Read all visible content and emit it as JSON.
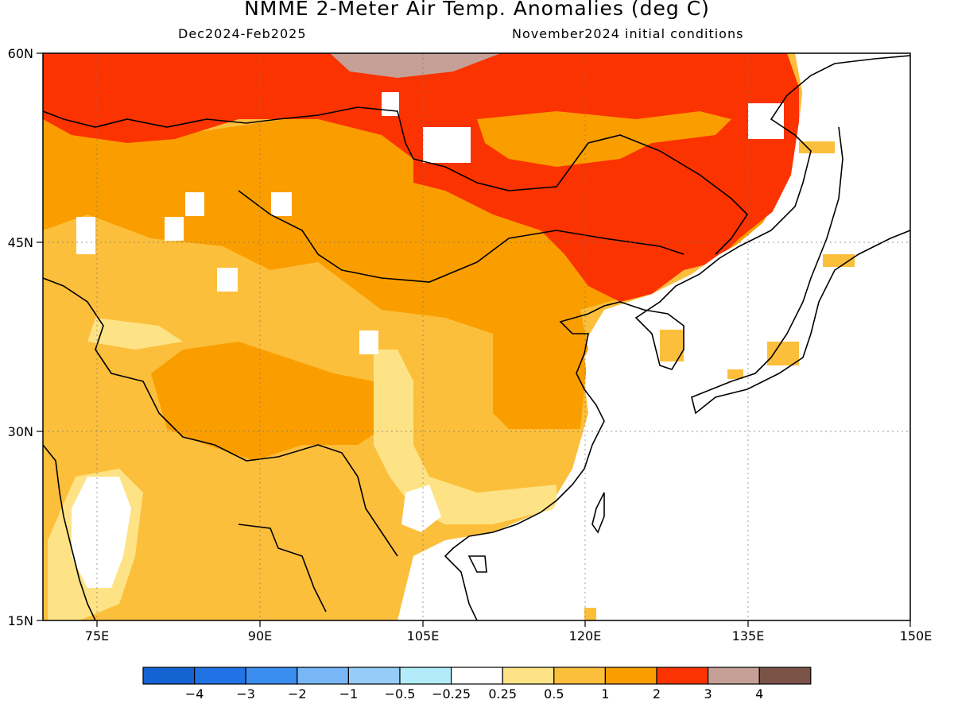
{
  "title": "NMME 2-Meter Air Temp. Anomalies (deg C)",
  "period": "Dec2024-Feb2025",
  "init": "November2024 initial conditions",
  "map": {
    "lat_labels": [
      "60N",
      "45N",
      "30N",
      "15N"
    ],
    "lon_labels": [
      "75E",
      "90E",
      "105E",
      "120E",
      "135E",
      "150E"
    ],
    "lon_range": [
      "70E",
      "150E"
    ],
    "lat_range": [
      "15N",
      "60N"
    ]
  },
  "colorbar": {
    "labels": [
      "-4",
      "-3",
      "-2",
      "-1",
      "-0.5",
      "-0.25",
      "0.25",
      "0.5",
      "1",
      "2",
      "3",
      "4"
    ],
    "colors": [
      "#1463d2",
      "#2172e4",
      "#3a8ef0",
      "#78b6f5",
      "#96cdf8",
      "#b2ecfa",
      "#ffffff",
      "#fde385",
      "#fcbf3c",
      "#fa9e00",
      "#fb3300",
      "#c6a096",
      "#7a5246"
    ]
  }
}
